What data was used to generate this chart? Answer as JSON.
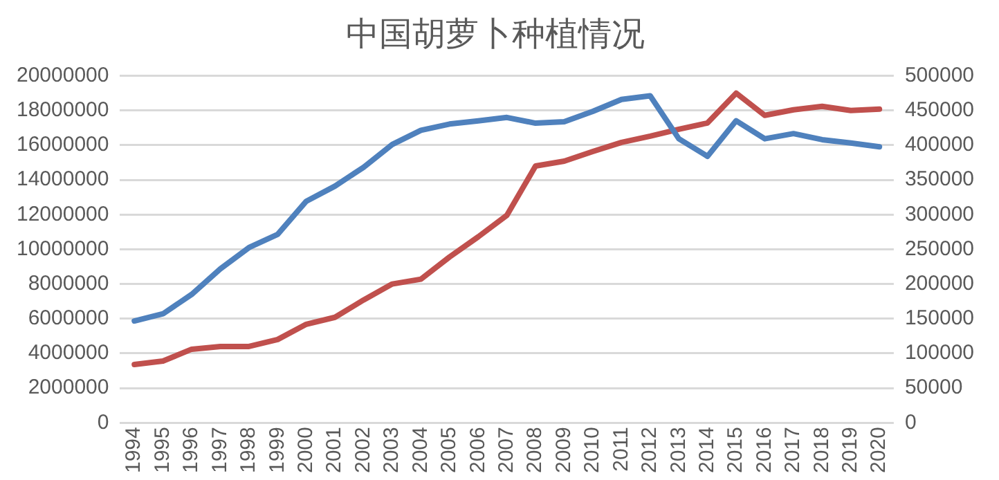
{
  "chart_data": {
    "type": "line",
    "title": "中国胡萝卜种植情况",
    "categories": [
      "1994",
      "1995",
      "1996",
      "1997",
      "1998",
      "1999",
      "2000",
      "2001",
      "2002",
      "2003",
      "2004",
      "2005",
      "2006",
      "2007",
      "2008",
      "2009",
      "2010",
      "2011",
      "2012",
      "2013",
      "2014",
      "2015",
      "2016",
      "2017",
      "2018",
      "2019",
      "2020"
    ],
    "series": [
      {
        "color": "#4f81bd",
        "values": [
          5870000,
          6280000,
          7400000,
          8870000,
          10100000,
          10860000,
          12770000,
          13640000,
          14730000,
          16040000,
          16860000,
          17220000,
          17400000,
          17600000,
          17270000,
          17350000,
          17950000,
          18640000,
          18850000,
          16370000,
          15360000,
          17410000,
          16370000,
          16670000,
          16320000,
          16130000,
          15910000
        ]
      },
      {
        "color": "#c0504d",
        "axis": "y2",
        "values": [
          84000,
          89000,
          106000,
          110000,
          110000,
          120000,
          142000,
          152000,
          177000,
          200000,
          207000,
          239000,
          268000,
          299000,
          370000,
          377000,
          391000,
          404000,
          413000,
          423000,
          432000,
          475000,
          443000,
          451000,
          456000,
          450000,
          452000
        ]
      }
    ],
    "ylim": [
      0,
      20000000
    ],
    "yticks": [
      0,
      2000000,
      4000000,
      6000000,
      8000000,
      10000000,
      12000000,
      14000000,
      16000000,
      18000000,
      20000000
    ],
    "y2lim": [
      0,
      500000
    ],
    "y2ticks": [
      0,
      50000,
      100000,
      150000,
      200000,
      250000,
      300000,
      350000,
      400000,
      450000,
      500000
    ],
    "grid": "y",
    "legend": false,
    "marker": "none",
    "line_style": "solid"
  }
}
